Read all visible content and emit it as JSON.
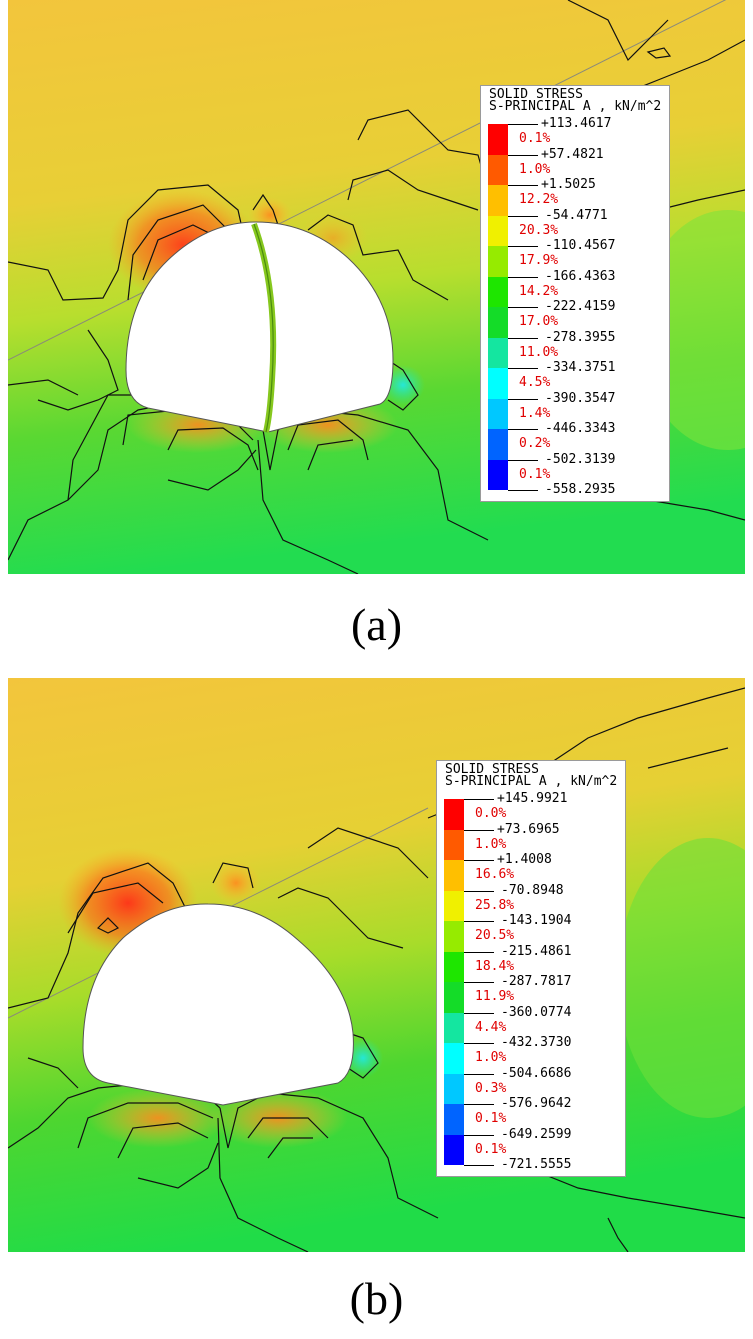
{
  "panels": [
    {
      "caption": "(a)",
      "legend": {
        "title1": "SOLID STRESS",
        "title2": "S-PRINCIPAL A , kN/m^2",
        "values": [
          "+113.4617",
          "+57.4821",
          "+1.5025",
          "-54.4771",
          "-110.4567",
          "-166.4363",
          "-222.4159",
          "-278.3955",
          "-334.3751",
          "-390.3547",
          "-446.3343",
          "-502.3139",
          "-558.2935"
        ],
        "percents": [
          "0.1%",
          "1.0%",
          "12.2%",
          "20.3%",
          "17.9%",
          "14.2%",
          "17.0%",
          "11.0%",
          "4.5%",
          "1.4%",
          "0.2%",
          "0.1%"
        ]
      }
    },
    {
      "caption": "(b)",
      "legend": {
        "title1": "SOLID STRESS",
        "title2": "S-PRINCIPAL A , kN/m^2",
        "values": [
          "+145.9921",
          "+73.6965",
          "+1.4008",
          "-70.8948",
          "-143.1904",
          "-215.4861",
          "-287.7817",
          "-360.0774",
          "-432.3730",
          "-504.6686",
          "-576.9642",
          "-649.2599",
          "-721.5555"
        ],
        "percents": [
          "0.0%",
          "1.0%",
          "16.6%",
          "25.8%",
          "20.5%",
          "18.4%",
          "11.9%",
          "4.4%",
          "1.0%",
          "0.3%",
          "0.1%",
          "0.1%"
        ]
      }
    }
  ],
  "colors": {
    "scale": [
      "#ff0000",
      "#ff5a00",
      "#ffbf00",
      "#f0f000",
      "#96eb00",
      "#1ee600",
      "#14dc28",
      "#14e6a0",
      "#00ffff",
      "#00c8ff",
      "#0064ff",
      "#0000ff"
    ],
    "background_top": "#f2c23a",
    "background_bottom": "#22d84c",
    "percent_text": "#e00000"
  }
}
